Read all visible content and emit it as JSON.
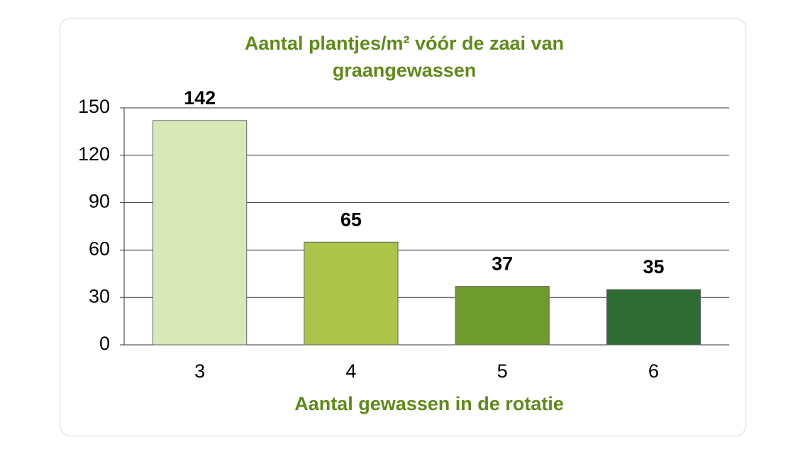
{
  "chart_data": {
    "type": "bar",
    "title": "Aantal plantjes/m² vóór de zaai van graangewassen",
    "x_label": "Aantal gewassen in de rotatie",
    "categories": [
      "3",
      "4",
      "5",
      "6"
    ],
    "values": [
      142,
      65,
      37,
      35
    ],
    "colors": [
      "#d8e8b6",
      "#abc449",
      "#6e9a2e",
      "#2e6c33"
    ],
    "ylim": [
      0,
      150
    ],
    "yticks": [
      0,
      30,
      60,
      90,
      120,
      150
    ],
    "grid": true
  }
}
